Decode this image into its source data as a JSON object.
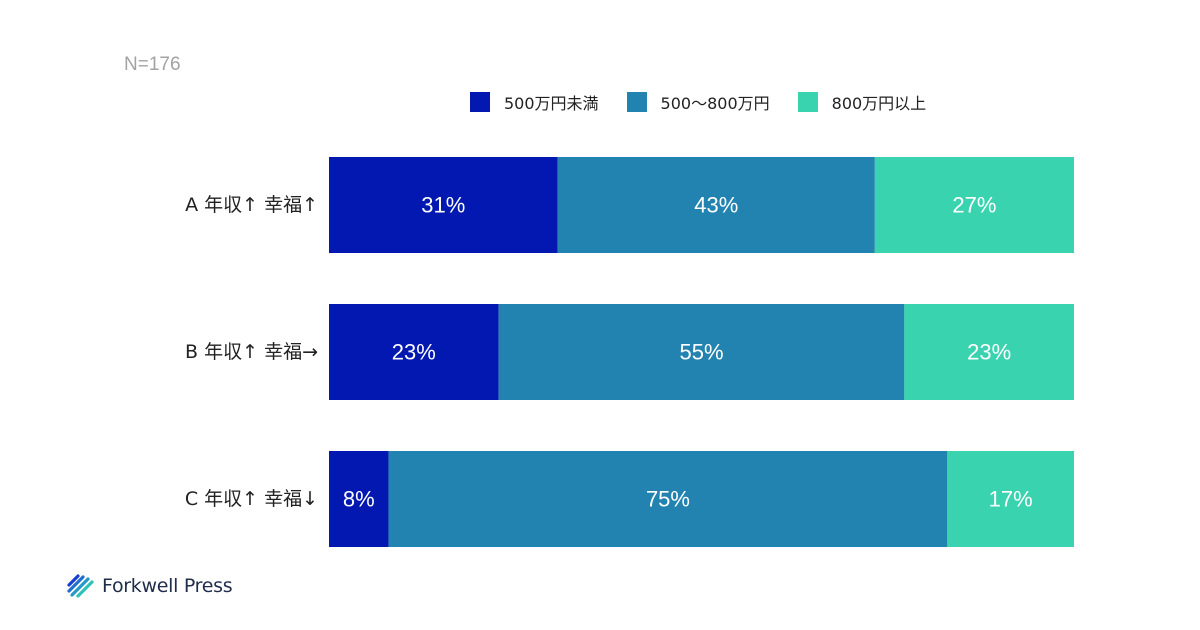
{
  "sample_size": "N=176",
  "colors": {
    "under_500": "#0218b0",
    "mid_500_800": "#2283b0",
    "over_800": "#39d3b0"
  },
  "chart_data": {
    "type": "bar",
    "orientation": "horizontal",
    "stacked": true,
    "normalized": true,
    "categories": [
      "A 年収↑ 幸福↑",
      "B 年収↑ 幸福→",
      "C 年収↑ 幸福↓"
    ],
    "series": [
      {
        "name": "500万円未満",
        "color": "#0218b0",
        "values": [
          31,
          23,
          8
        ],
        "labels": [
          "31%",
          "23%",
          "8%"
        ]
      },
      {
        "name": "500〜800万円",
        "color": "#2283b0",
        "values": [
          43,
          55,
          75
        ],
        "labels": [
          "43%",
          "55%",
          "75%"
        ]
      },
      {
        "name": "800万円以上",
        "color": "#39d3b0",
        "values": [
          27,
          23,
          17
        ],
        "labels": [
          "27%",
          "23%",
          "17%"
        ]
      }
    ],
    "legend_position": "top-right",
    "grid": false
  },
  "brand": {
    "name": "Forkwell Press",
    "icon": "forkwell-logo-icon"
  }
}
